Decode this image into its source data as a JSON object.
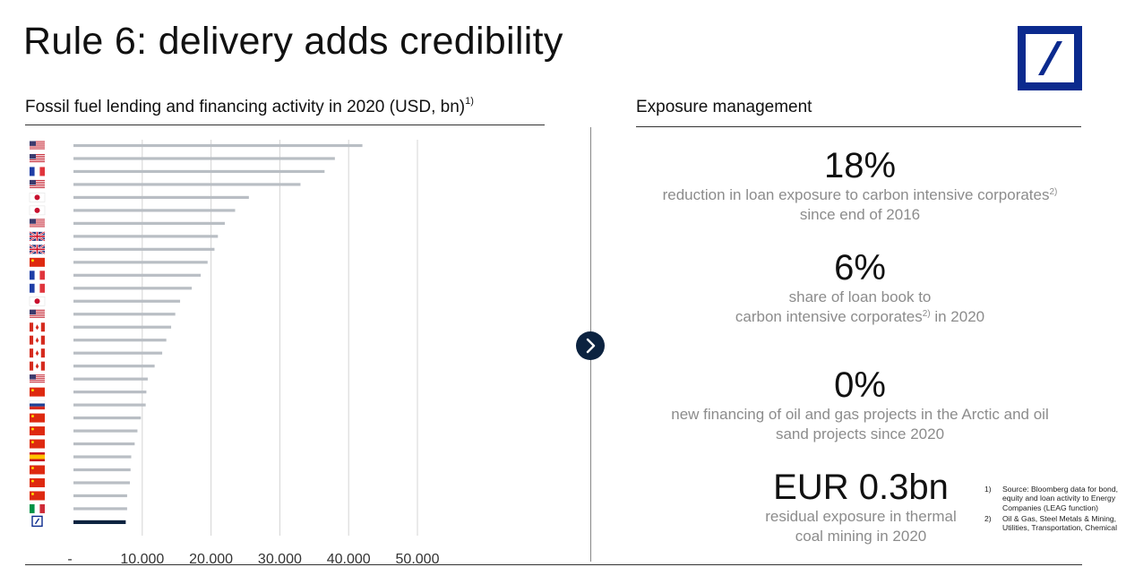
{
  "slide": {
    "title": "Rule 6: delivery adds credibility",
    "chart_heading": "Fossil fuel lending and financing activity in 2020 (USD, bn)",
    "chart_heading_note": "1)",
    "right_heading": "Exposure management",
    "logo_icon": "deutsche-bank-logo",
    "next_icon": "chevron-right-icon"
  },
  "kpis": [
    {
      "value": "18%",
      "desc_line1": "reduction in loan exposure to carbon intensive corporates",
      "desc_line1_note": "2)",
      "desc_line2": "since end of 2016"
    },
    {
      "value": "6%",
      "desc_line1": "share of loan book to",
      "desc_line2_pre": "carbon intensive corporates",
      "desc_line2_note": "2)",
      "desc_line2_post": " in 2020"
    },
    {
      "value": "0%",
      "desc_line1": "new financing of oil and gas projects in the Arctic and oil",
      "desc_line2": "sand projects since 2020"
    },
    {
      "value": "EUR 0.3bn",
      "desc_line1": "residual exposure in thermal",
      "desc_line2": "coal mining in 2020"
    }
  ],
  "footnotes": [
    {
      "num": "1)",
      "text": "Source: Bloomberg data for bond, equity and loan activity to Energy Companies (LEAG function)"
    },
    {
      "num": "2)",
      "text": "Oil & Gas, Steel Metals & Mining, Utilities, Transportation, Chemical"
    }
  ],
  "chart_data": {
    "type": "bar",
    "orientation": "horizontal",
    "title": "Fossil fuel lending and financing activity in 2020 (USD, bn)",
    "x_ticks": [
      "-",
      "10.000",
      "20.000",
      "30.000",
      "40.000",
      "50.000"
    ],
    "xlim": [
      0,
      50000
    ],
    "grid": true,
    "categories": [
      "us",
      "us",
      "fr",
      "us",
      "jp",
      "jp",
      "us",
      "gb",
      "gb",
      "cn",
      "fr",
      "fr",
      "jp",
      "us",
      "ca",
      "ca",
      "ca",
      "ca",
      "us",
      "cn",
      "ru",
      "cn",
      "cn",
      "cn",
      "es",
      "cn",
      "cn",
      "cn",
      "it",
      "db"
    ],
    "values": [
      42000,
      38000,
      36500,
      33000,
      25500,
      23500,
      22000,
      21000,
      20500,
      19500,
      18500,
      17200,
      15500,
      14800,
      14200,
      13500,
      12900,
      11800,
      10800,
      10600,
      10500,
      9800,
      9300,
      8900,
      8400,
      8300,
      8200,
      7800,
      7800,
      7600
    ],
    "highlight_index": 29,
    "colors": {
      "bar": "#b9bec4",
      "highlight": "#0c2340",
      "grid": "#d4d4d4"
    }
  }
}
